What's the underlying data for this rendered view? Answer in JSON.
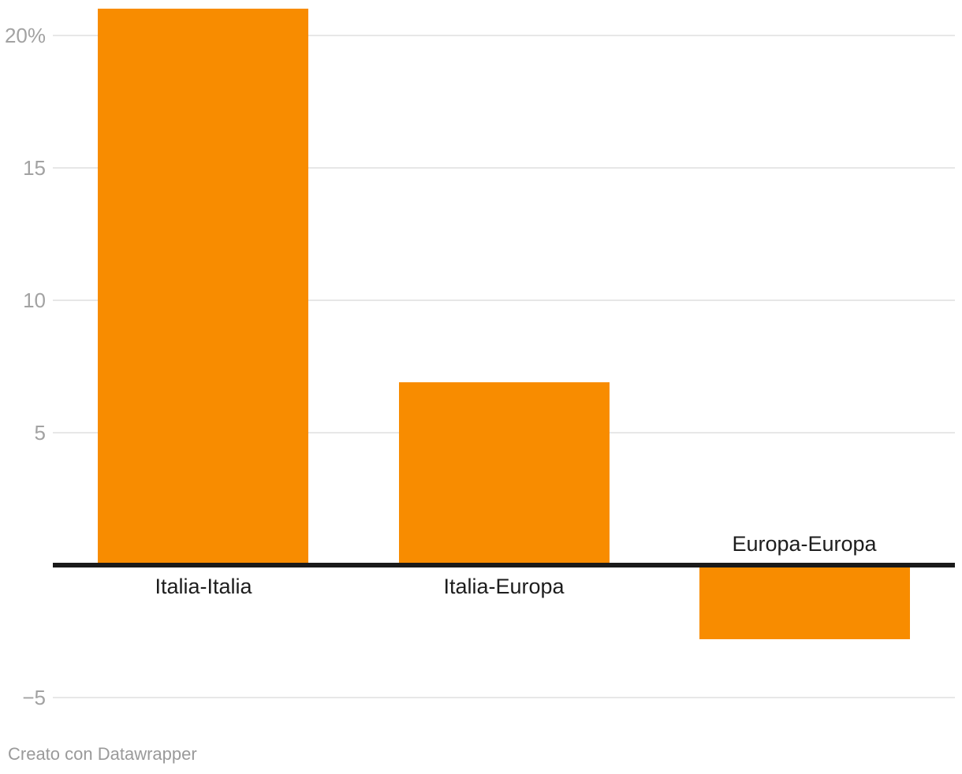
{
  "chart_data": {
    "type": "bar",
    "categories": [
      "Italia-Italia",
      "Italia-Europa",
      "Europa-Europa"
    ],
    "values": [
      21,
      6.9,
      -2.8
    ],
    "title": "",
    "xlabel": "",
    "ylabel": "",
    "ylim": [
      -6.5,
      21.3
    ],
    "grid": true,
    "legend": "none",
    "yticks": [
      {
        "value": 20,
        "label": "20%"
      },
      {
        "value": 15,
        "label": "15"
      },
      {
        "value": 10,
        "label": "10"
      },
      {
        "value": 5,
        "label": "5"
      },
      {
        "value": -5,
        "label": "−5"
      }
    ],
    "bar_color": "#f88c00",
    "axis_line_color": "#1a1a1a",
    "gridline_color": "#e7e7e7",
    "tick_label_color": "#a2a2a2",
    "category_label_color": "#1d1d1d"
  },
  "footer": {
    "text": "Creato con Datawrapper"
  }
}
